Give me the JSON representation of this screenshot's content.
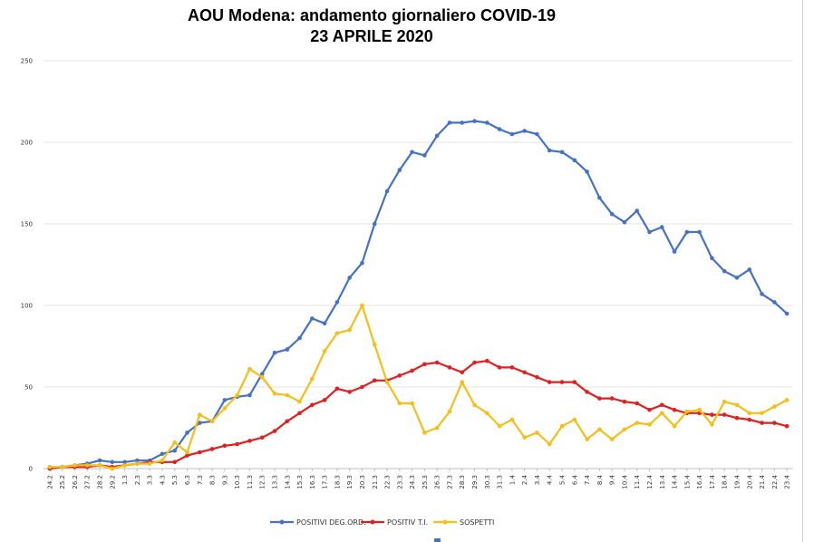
{
  "chart_data": {
    "type": "line",
    "title": "AOU Modena: andamento giornaliero COVID-19",
    "subtitle": "23 APRILE 2020",
    "ylim": [
      0,
      250
    ],
    "yticks": [
      0,
      50,
      100,
      150,
      200,
      250
    ],
    "grid": true,
    "legend_position": "bottom",
    "categories": [
      "24.2",
      "25.2",
      "26.2",
      "27.2",
      "28.2",
      "29.2",
      "1.3",
      "2.3",
      "3.3",
      "4.3",
      "5.3",
      "6.3",
      "7.3",
      "8.3",
      "9.3",
      "10.3",
      "11.3",
      "12.3",
      "13.3",
      "14.3",
      "15.3",
      "16.3",
      "17.3",
      "18.3",
      "19.3",
      "20.3",
      "21.3",
      "22.3",
      "23.3",
      "24.3",
      "25.3",
      "26.3",
      "27.3",
      "28.3",
      "29.3",
      "30.3",
      "31.3",
      "1.4",
      "2.4",
      "3.4",
      "4.4",
      "5.4",
      "6.4",
      "7.4",
      "8.4",
      "9.4",
      "10.4",
      "11.4",
      "12.4",
      "13.4",
      "14.4",
      "15.4",
      "16.4",
      "17.4",
      "18.4",
      "19.4",
      "20.4",
      "21.4",
      "22.4",
      "23.4"
    ],
    "series": [
      {
        "name": "POSITIVI DEG.ORD.",
        "color": "#4472c4",
        "values": [
          0,
          1,
          2,
          3,
          5,
          4,
          4,
          5,
          5,
          9,
          11,
          22,
          28,
          29,
          42,
          44,
          45,
          58,
          71,
          73,
          80,
          92,
          89,
          102,
          117,
          126,
          150,
          170,
          183,
          194,
          192,
          204,
          212,
          212,
          213,
          212,
          208,
          205,
          207,
          205,
          195,
          194,
          189,
          182,
          166,
          156,
          151,
          158,
          145,
          148,
          133,
          145,
          145,
          129,
          121,
          117,
          122,
          107,
          102,
          95
        ]
      },
      {
        "name": "POSITIV T.I.",
        "color": "#e02020",
        "values": [
          0,
          1,
          1,
          1,
          2,
          1,
          2,
          3,
          4,
          4,
          4,
          8,
          10,
          12,
          14,
          15,
          17,
          19,
          23,
          29,
          34,
          39,
          42,
          49,
          47,
          50,
          54,
          54,
          57,
          60,
          64,
          65,
          62,
          59,
          65,
          66,
          62,
          62,
          59,
          56,
          53,
          53,
          53,
          47,
          43,
          43,
          41,
          40,
          36,
          39,
          36,
          34,
          34,
          33,
          33,
          31,
          30,
          28,
          28,
          26
        ]
      },
      {
        "name": "SOSPETTI",
        "color": "#f5be18",
        "values": [
          1,
          1,
          2,
          2,
          2,
          0,
          2,
          3,
          3,
          5,
          16,
          10,
          33,
          29,
          37,
          45,
          61,
          56,
          46,
          45,
          41,
          55,
          72,
          83,
          85,
          100,
          76,
          53,
          40,
          40,
          22,
          25,
          35,
          53,
          39,
          34,
          26,
          30,
          19,
          22,
          15,
          26,
          30,
          18,
          24,
          18,
          24,
          28,
          27,
          34,
          26,
          35,
          36,
          27,
          41,
          39,
          34,
          34,
          38,
          42
        ]
      }
    ]
  }
}
